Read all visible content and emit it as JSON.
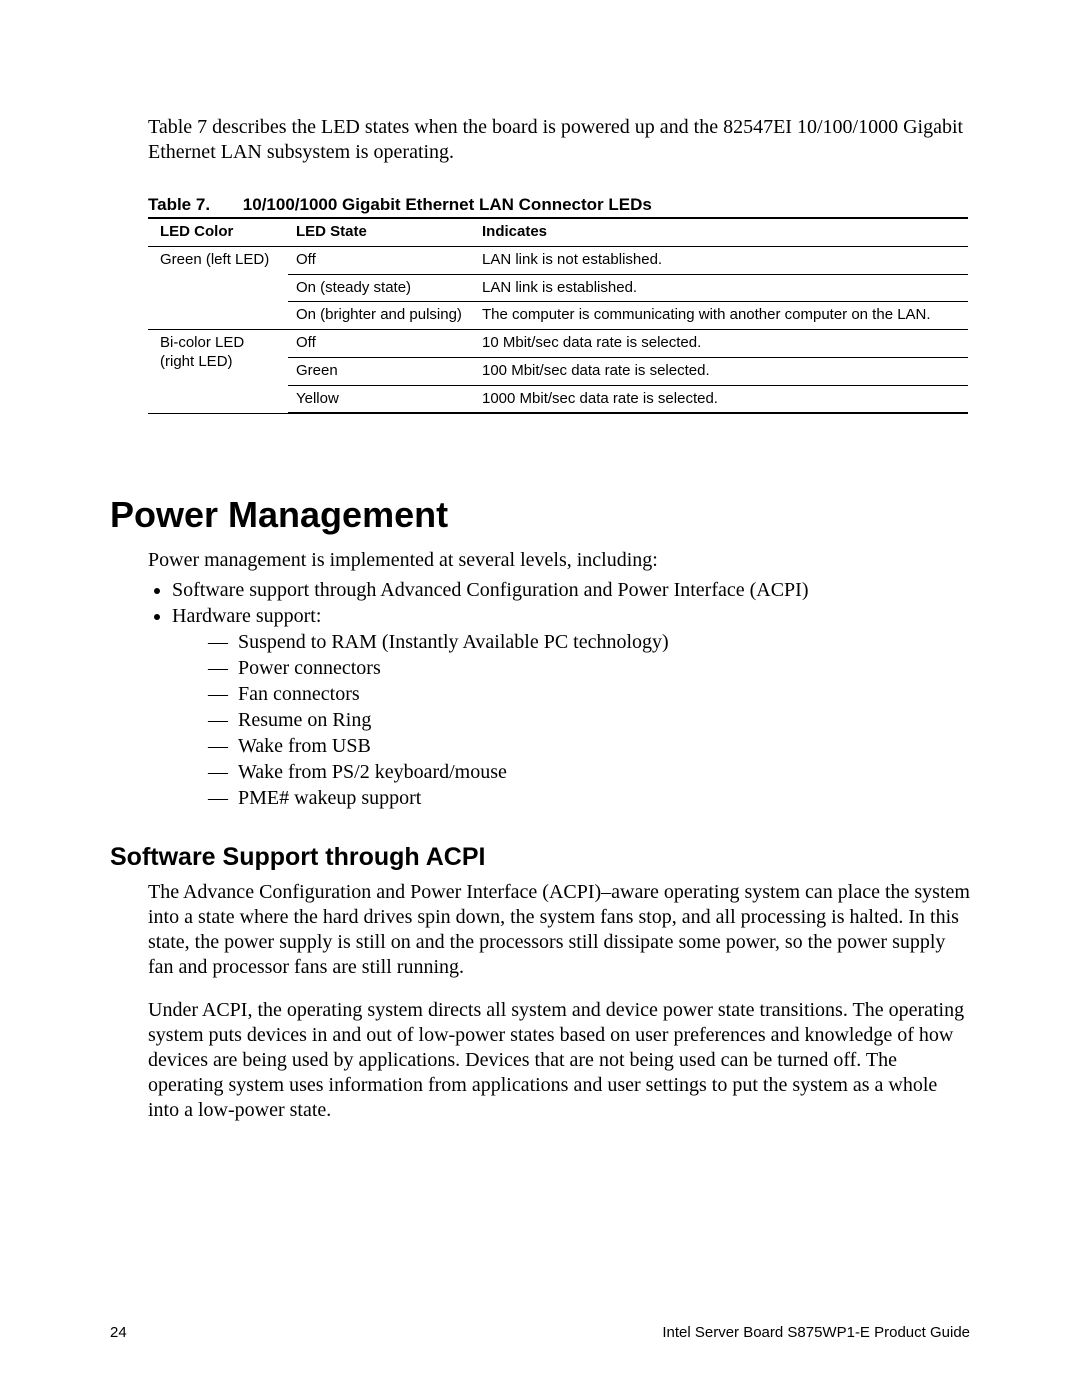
{
  "intro": "Table 7 describes the LED states when the board is powered up and the 82547EI 10/100/1000 Gigabit Ethernet LAN subsystem is operating.",
  "table": {
    "caption_label": "Table 7.",
    "caption_title": "10/100/1000 Gigabit Ethernet LAN Connector LEDs",
    "headers": [
      "LED Color",
      "LED State",
      "Indicates"
    ],
    "groups": [
      {
        "color": "Green (left LED)",
        "rows": [
          {
            "state": "Off",
            "indicates": "LAN link is not established."
          },
          {
            "state": "On (steady state)",
            "indicates": "LAN link is established."
          },
          {
            "state": "On (brighter and pulsing)",
            "indicates": "The computer is communicating with another computer on the LAN."
          }
        ]
      },
      {
        "color": "Bi-color LED (right LED)",
        "rows": [
          {
            "state": "Off",
            "indicates": "10 Mbit/sec data rate is selected."
          },
          {
            "state": "Green",
            "indicates": "100 Mbit/sec data rate is selected."
          },
          {
            "state": "Yellow",
            "indicates": "1000 Mbit/sec data rate is selected."
          }
        ]
      }
    ]
  },
  "section": {
    "heading": "Power Management",
    "lead": "Power management is implemented at several levels, including:",
    "bullets": [
      {
        "text": "Software support through Advanced Configuration and Power Interface (ACPI)"
      },
      {
        "text": "Hardware support:",
        "sub": [
          "Suspend to RAM (Instantly Available PC technology)",
          "Power connectors",
          "Fan connectors",
          "Resume on Ring",
          "Wake from USB",
          "Wake from PS/2 keyboard/mouse",
          "PME# wakeup support"
        ]
      }
    ],
    "sub_heading": "Software Support through ACPI",
    "para1": "The Advance Configuration and Power Interface (ACPI)–aware operating system can place the system into a state where the hard drives spin down, the system fans stop, and all processing is halted.  In this state, the power supply is still on and the processors still dissipate some power, so the power supply fan and processor fans are still running.",
    "para2": "Under ACPI, the operating system directs all system and device power state transitions.  The operating system puts devices in and out of low-power states based on user preferences and knowledge of how devices are being used by applications.  Devices that are not being used can be turned off.  The operating system uses information from applications and user settings to put the system as a whole into a low-power state."
  },
  "footer": {
    "page_number": "24",
    "doc_title": "Intel Server Board S875WP1-E Product Guide"
  }
}
